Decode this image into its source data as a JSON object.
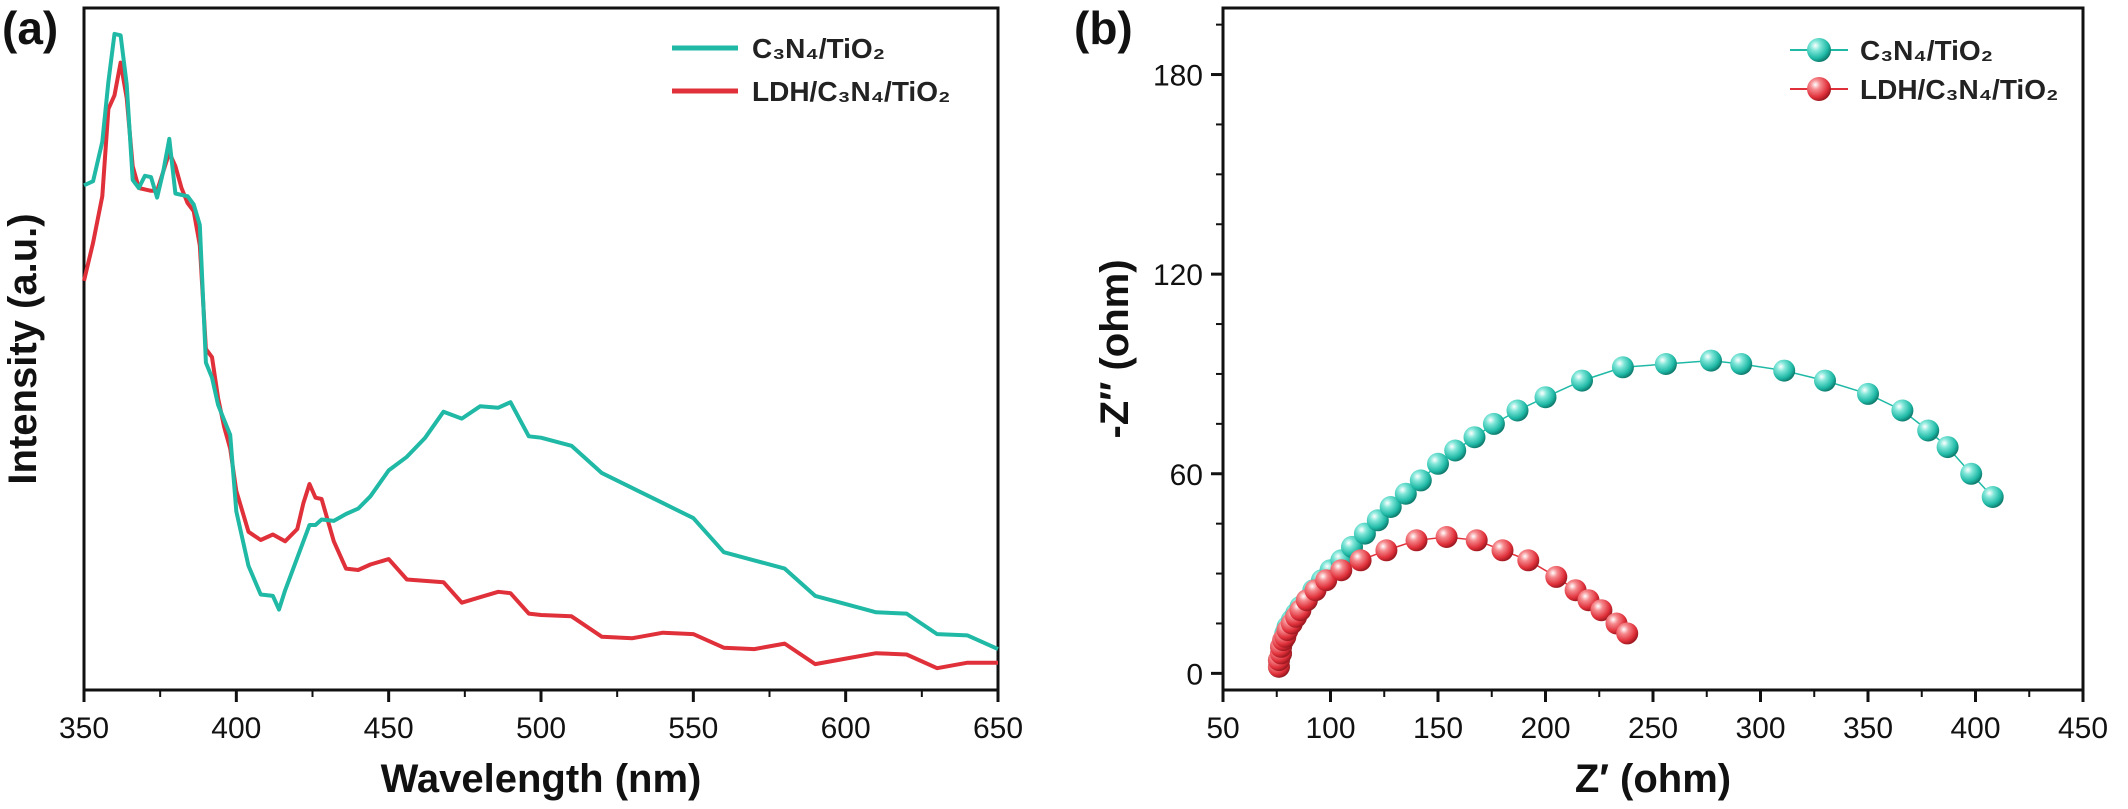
{
  "colors": {
    "teal": "#1fb9a6",
    "red": "#e0303a",
    "axis": "#111111"
  },
  "chart_data": [
    {
      "panel": "(a)",
      "type": "line",
      "xlabel": "Wavelength (nm)",
      "ylabel": "Intensity (a.u.)",
      "xlim": [
        350,
        650
      ],
      "ylim": [
        0,
        1
      ],
      "x_ticks": [
        "350",
        "400",
        "450",
        "500",
        "550",
        "600",
        "650"
      ],
      "y_ticks_shown": false,
      "legend_position": "top-right",
      "series": [
        {
          "name": "C₃N₄/TiO₂",
          "color": "#1fb9a6",
          "x": [
            350,
            353,
            356,
            358,
            360,
            362,
            364,
            366,
            368,
            370,
            372,
            374,
            376,
            378,
            380,
            382,
            384,
            386,
            388,
            390,
            392,
            394,
            396,
            398,
            400,
            404,
            408,
            412,
            414,
            416,
            420,
            424,
            426,
            428,
            432,
            436,
            440,
            444,
            450,
            456,
            462,
            468,
            474,
            480,
            486,
            490,
            496,
            500,
            510,
            520,
            530,
            540,
            550,
            560,
            570,
            580,
            590,
            600,
            610,
            620,
            630,
            640,
            650
          ],
          "y": [
            0.74,
            0.75,
            0.8,
            0.88,
            0.97,
            0.96,
            0.88,
            0.76,
            0.74,
            0.75,
            0.74,
            0.73,
            0.76,
            0.8,
            0.74,
            0.73,
            0.72,
            0.7,
            0.69,
            0.48,
            0.45,
            0.43,
            0.4,
            0.37,
            0.25,
            0.19,
            0.14,
            0.13,
            0.13,
            0.15,
            0.19,
            0.23,
            0.25,
            0.25,
            0.24,
            0.27,
            0.27,
            0.28,
            0.31,
            0.35,
            0.37,
            0.4,
            0.41,
            0.42,
            0.41,
            0.41,
            0.38,
            0.37,
            0.35,
            0.33,
            0.3,
            0.27,
            0.24,
            0.21,
            0.19,
            0.17,
            0.15,
            0.13,
            0.11,
            0.1,
            0.09,
            0.08,
            0.06
          ]
        },
        {
          "name": "LDH/C₃N₄/TiO₂",
          "color": "#e0303a",
          "x": [
            350,
            353,
            356,
            358,
            360,
            362,
            364,
            366,
            368,
            370,
            372,
            374,
            376,
            378,
            380,
            382,
            384,
            386,
            388,
            390,
            392,
            394,
            396,
            398,
            400,
            404,
            408,
            412,
            416,
            420,
            422,
            424,
            426,
            428,
            432,
            436,
            440,
            444,
            450,
            456,
            462,
            468,
            474,
            480,
            486,
            490,
            496,
            500,
            510,
            520,
            530,
            540,
            550,
            560,
            570,
            580,
            590,
            600,
            610,
            620,
            630,
            640,
            650
          ],
          "y": [
            0.6,
            0.66,
            0.72,
            0.84,
            0.88,
            0.92,
            0.86,
            0.78,
            0.74,
            0.73,
            0.72,
            0.74,
            0.76,
            0.78,
            0.78,
            0.74,
            0.71,
            0.69,
            0.66,
            0.5,
            0.48,
            0.44,
            0.39,
            0.35,
            0.28,
            0.24,
            0.22,
            0.22,
            0.23,
            0.24,
            0.27,
            0.29,
            0.29,
            0.28,
            0.21,
            0.19,
            0.18,
            0.18,
            0.18,
            0.17,
            0.16,
            0.15,
            0.14,
            0.14,
            0.14,
            0.13,
            0.12,
            0.11,
            0.1,
            0.09,
            0.08,
            0.08,
            0.07,
            0.07,
            0.06,
            0.06,
            0.05,
            0.05,
            0.05,
            0.04,
            0.04,
            0.04,
            0.04
          ]
        }
      ]
    },
    {
      "panel": "(b)",
      "type": "scatter",
      "xlabel": "Z′ (ohm)",
      "ylabel": "-Z″ (ohm)",
      "xlim": [
        50,
        450
      ],
      "ylim": [
        -5,
        200
      ],
      "x_ticks": [
        "50",
        "100",
        "150",
        "200",
        "250",
        "300",
        "350",
        "400",
        "450"
      ],
      "y_ticks": [
        "0",
        "60",
        "120",
        "180"
      ],
      "legend_position": "top-right",
      "series": [
        {
          "name": "C₃N₄/TiO₂",
          "color": "#1fb9a6",
          "x": [
            76,
            76,
            77,
            77,
            78,
            79,
            80,
            82,
            84,
            86,
            89,
            92,
            96,
            100,
            105,
            110,
            116,
            122,
            128,
            135,
            142,
            150,
            158,
            167,
            176,
            187,
            200,
            217,
            236,
            256,
            277,
            291,
            311,
            330,
            350,
            366,
            378,
            387,
            398,
            408
          ],
          "y": [
            2,
            4,
            6,
            8,
            10,
            12,
            14,
            16,
            18,
            20,
            22,
            25,
            28,
            31,
            34,
            38,
            42,
            46,
            50,
            54,
            58,
            63,
            67,
            71,
            75,
            79,
            83,
            88,
            92,
            93,
            94,
            93,
            91,
            88,
            84,
            79,
            73,
            68,
            60,
            53
          ]
        },
        {
          "name": "LDH/C₃N₄/TiO₂",
          "color": "#e0303a",
          "x": [
            76,
            76,
            77,
            77,
            78,
            79,
            80,
            82,
            84,
            86,
            89,
            93,
            98,
            105,
            114,
            126,
            140,
            154,
            168,
            180,
            192,
            205,
            214,
            220,
            226,
            233,
            238
          ],
          "y": [
            2,
            4,
            6,
            8,
            10,
            11,
            13,
            15,
            17,
            19,
            22,
            25,
            28,
            31,
            34,
            37,
            40,
            41,
            40,
            37,
            34,
            29,
            25,
            22,
            19,
            15,
            12
          ]
        }
      ]
    }
  ]
}
